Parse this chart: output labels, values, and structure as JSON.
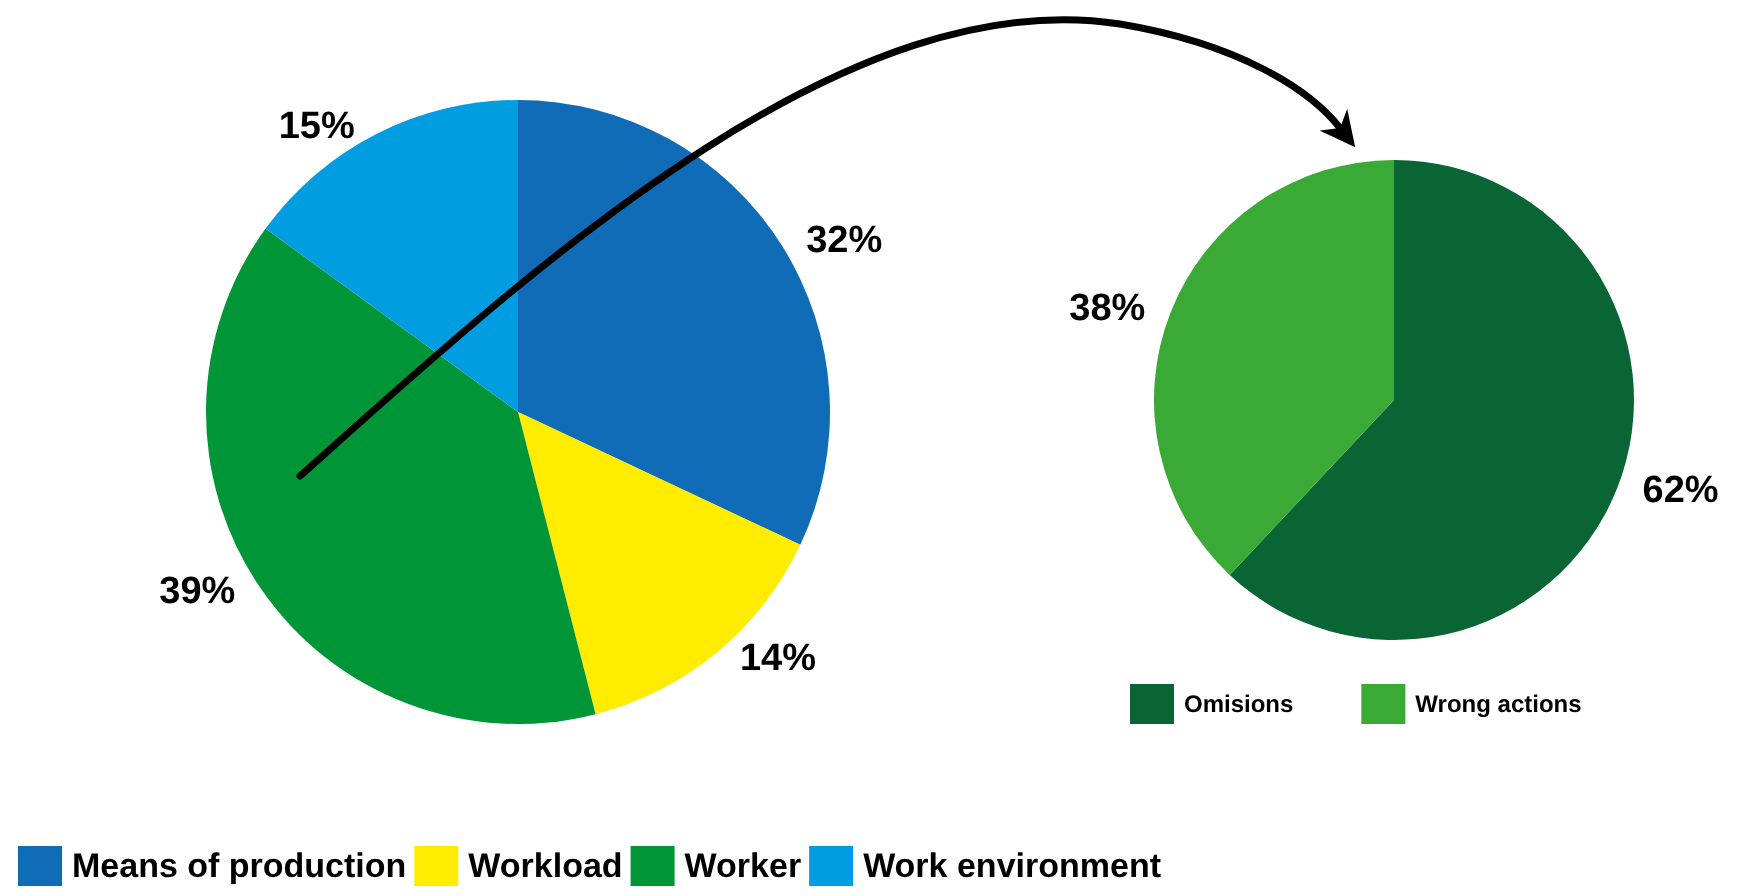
{
  "chart_data": [
    {
      "type": "pie",
      "categories": [
        "Means of production",
        "Workload",
        "Worker",
        "Work environment"
      ],
      "values": [
        32,
        14,
        39,
        15
      ],
      "value_labels": [
        "32%",
        "14%",
        "39%",
        "15%"
      ],
      "colors": [
        "#106cb6",
        "#ffec00",
        "#009537",
        "#009ee0"
      ],
      "legend": "bottom"
    },
    {
      "type": "pie",
      "categories": [
        "Omisions",
        "Wrong actions"
      ],
      "values": [
        62,
        38
      ],
      "value_labels": [
        "62%",
        "38%"
      ],
      "colors": [
        "#0a6534",
        "#3ba935"
      ],
      "legend": "bottom"
    }
  ]
}
